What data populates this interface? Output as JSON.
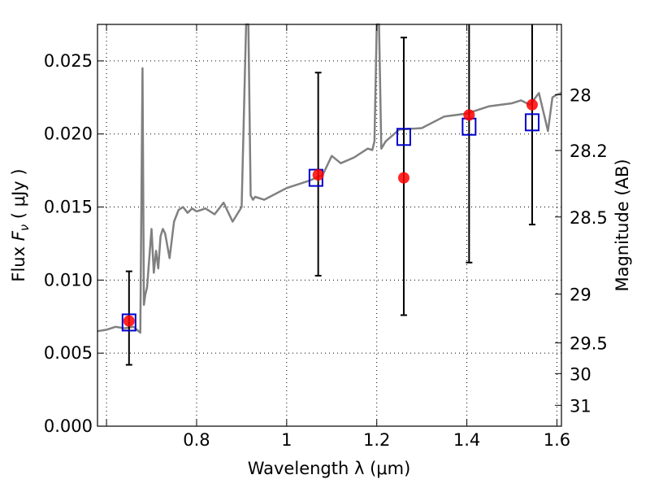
{
  "chart_data": {
    "type": "scatter",
    "xlabel": "Wavelength  λ (μm)",
    "ylabel": "Flux  F_ν  ( μJy )",
    "ylabel_right": "Magnitude (AB)",
    "xlim": [
      0.58,
      1.61
    ],
    "ylim": [
      0.0,
      0.0275
    ],
    "grid": true,
    "x_ticks": [
      0.6,
      0.8,
      1.0,
      1.2,
      1.4,
      1.6
    ],
    "x_tick_labels": [
      "",
      "0.8",
      "1",
      "1.2",
      "1.4",
      "1.6"
    ],
    "y_ticks": [
      0.0,
      0.005,
      0.01,
      0.015,
      0.02,
      0.025
    ],
    "y_tick_labels": [
      "0.000",
      "0.005",
      "0.010",
      "0.015",
      "0.020",
      "0.025"
    ],
    "right_ticks": [
      {
        "label": "28",
        "flux": 0.02268
      },
      {
        "label": "28.2",
        "flux": 0.01887
      },
      {
        "label": "28.5",
        "flux": 0.01432
      },
      {
        "label": "29",
        "flux": 0.00904
      },
      {
        "label": "29.5",
        "flux": 0.0057
      },
      {
        "label": "30",
        "flux": 0.0036
      },
      {
        "label": "31",
        "flux": 0.00143
      }
    ],
    "series": [
      {
        "style": "spectrum",
        "color": "#808080",
        "x": [
          0.58,
          0.6,
          0.62,
          0.64,
          0.66,
          0.675,
          0.68,
          0.683,
          0.686,
          0.69,
          0.7,
          0.705,
          0.71,
          0.715,
          0.72,
          0.725,
          0.73,
          0.74,
          0.75,
          0.76,
          0.77,
          0.78,
          0.79,
          0.8,
          0.82,
          0.84,
          0.86,
          0.88,
          0.9,
          0.91,
          0.915,
          0.92,
          0.925,
          0.93,
          0.95,
          1.0,
          1.05,
          1.08,
          1.1,
          1.12,
          1.15,
          1.18,
          1.19,
          1.195,
          1.2,
          1.205,
          1.21,
          1.22,
          1.25,
          1.3,
          1.35,
          1.4,
          1.45,
          1.5,
          1.52,
          1.54,
          1.56,
          1.58,
          1.59,
          1.6,
          1.61
        ],
        "y": [
          0.0065,
          0.0066,
          0.0068,
          0.0067,
          0.0068,
          0.0064,
          0.0245,
          0.0083,
          0.009,
          0.0095,
          0.0135,
          0.0105,
          0.012,
          0.0108,
          0.013,
          0.0135,
          0.0132,
          0.0115,
          0.014,
          0.0148,
          0.015,
          0.0146,
          0.0149,
          0.0147,
          0.0149,
          0.0145,
          0.0153,
          0.014,
          0.015,
          0.0275,
          0.0275,
          0.0158,
          0.0155,
          0.0157,
          0.0155,
          0.0163,
          0.0168,
          0.0172,
          0.0185,
          0.018,
          0.0184,
          0.019,
          0.0189,
          0.0195,
          0.0275,
          0.0275,
          0.019,
          0.0195,
          0.0203,
          0.0204,
          0.0212,
          0.0214,
          0.0219,
          0.0221,
          0.0223,
          0.022,
          0.0228,
          0.0202,
          0.0225,
          0.0227,
          0.0228
        ]
      },
      {
        "style": "errorbar",
        "color": "#000000",
        "points": [
          {
            "x": 0.65,
            "low": 0.0042,
            "high": 0.0106
          },
          {
            "x": 1.07,
            "low": 0.0103,
            "high": 0.0242
          },
          {
            "x": 1.26,
            "low": 0.0076,
            "high": 0.0266
          },
          {
            "x": 1.405,
            "low": 0.0112,
            "high": 0.0275
          },
          {
            "x": 1.545,
            "low": 0.0138,
            "high": 0.0275
          }
        ]
      },
      {
        "style": "open-square",
        "color": "#0000cc",
        "x": [
          0.65,
          1.065,
          1.26,
          1.405,
          1.545
        ],
        "y": [
          0.0071,
          0.017,
          0.0198,
          0.0205,
          0.0208
        ]
      },
      {
        "style": "filled-circle",
        "color": "#ff0000",
        "x": [
          0.65,
          1.07,
          1.26,
          1.405,
          1.545
        ],
        "y": [
          0.0072,
          0.0172,
          0.017,
          0.0213,
          0.022
        ]
      }
    ]
  }
}
